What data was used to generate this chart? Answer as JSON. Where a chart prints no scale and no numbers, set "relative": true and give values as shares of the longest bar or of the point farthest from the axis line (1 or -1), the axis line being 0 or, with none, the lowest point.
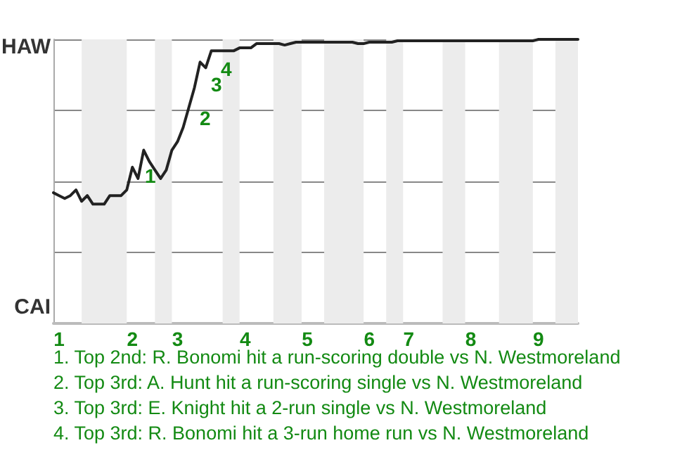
{
  "chart_data": {
    "type": "line",
    "relative": true,
    "categories": [
      null,
      "1",
      null,
      null,
      null,
      null,
      null,
      null,
      null,
      null,
      null,
      null,
      null,
      null,
      "2",
      null,
      null,
      null,
      null,
      null,
      null,
      null,
      "3",
      null,
      null,
      null,
      null,
      null,
      null,
      null,
      null,
      null,
      null,
      null,
      "4",
      null,
      null,
      null,
      null,
      null,
      null,
      null,
      null,
      null,
      null,
      "5",
      null,
      null,
      null,
      null,
      null,
      null,
      null,
      null,
      null,
      null,
      "6",
      null,
      null,
      null,
      null,
      null,
      null,
      "7",
      null,
      null,
      null,
      null,
      null,
      null,
      null,
      null,
      null,
      null,
      "8",
      null,
      null,
      null,
      null,
      null,
      null,
      null,
      null,
      null,
      null,
      null,
      "9",
      null,
      null,
      null,
      null,
      null,
      null,
      null
    ],
    "grid": "y",
    "marker": "none",
    "line_style": "solid",
    "series": [
      {
        "color": "#222222",
        "values": [
          0.46,
          0.45,
          0.44,
          0.45,
          0.47,
          0.43,
          0.45,
          0.42,
          0.42,
          0.42,
          0.45,
          0.45,
          0.45,
          0.47,
          0.55,
          0.51,
          0.61,
          0.57,
          0.54,
          0.51,
          0.54,
          0.61,
          0.64,
          0.69,
          0.76,
          0.83,
          0.92,
          0.9,
          0.96,
          0.96,
          0.96,
          0.96,
          0.96,
          0.97,
          0.97,
          0.97,
          0.985,
          0.985,
          0.985,
          0.985,
          0.985,
          0.98,
          0.985,
          0.99,
          0.99,
          0.99,
          0.99,
          0.99,
          0.99,
          0.99,
          0.99,
          0.99,
          0.99,
          0.99,
          0.985,
          0.985,
          0.99,
          0.99,
          0.99,
          0.99,
          0.99,
          0.995,
          0.995,
          0.995,
          0.995,
          0.995,
          0.995,
          0.995,
          0.995,
          0.995,
          0.995,
          0.995,
          0.995,
          0.995,
          0.995,
          0.995,
          0.995,
          0.995,
          0.995,
          0.995,
          0.995,
          0.995,
          0.995,
          0.995,
          0.995,
          0.995,
          1,
          1,
          1,
          1,
          1,
          1,
          1,
          1
        ]
      }
    ],
    "annotations": [
      "HAW",
      "CAI",
      "1",
      "2",
      "3",
      "4",
      "1. Top 2nd: R. Bonomi hit a run-scoring double vs N. Westmoreland",
      "2. Top 3rd: A. Hunt hit a run-scoring single vs N. Westmoreland",
      "3. Top 3rd: E. Knight hit a 2-run single vs N. Westmoreland",
      "4. Top 3rd: R. Bonomi hit a 3-run home run vs N. Westmoreland"
    ]
  }
}
